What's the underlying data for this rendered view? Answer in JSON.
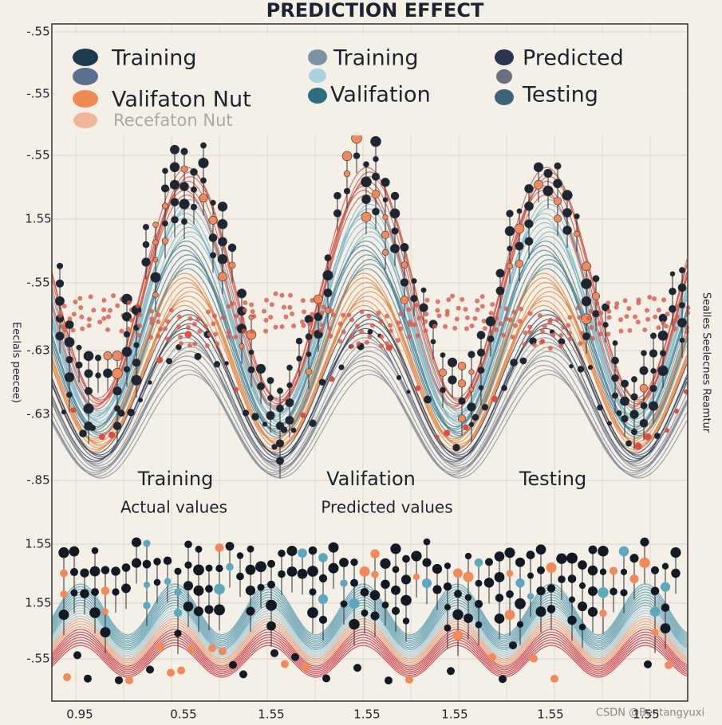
{
  "header": {
    "title": "PREDICTION EFFECT"
  },
  "legend": {
    "items": [
      {
        "label": "Training"
      },
      {
        "label": "Training"
      },
      {
        "label": "Predicted"
      },
      {
        "label": "Valifaton Nut"
      },
      {
        "label": "Valifation"
      },
      {
        "label": "Testing"
      },
      {
        "label": "Recefaton Nut"
      }
    ]
  },
  "axes": {
    "left_label": "Eeclals peecee)",
    "right_label": "Sealles Seelecnes Reamtur",
    "y_labels": [
      "-.55",
      "-.55",
      "-.55",
      "1.55",
      "-.55",
      "-.63",
      "-.63",
      "-.85",
      "1.55",
      "1.55",
      "-.55"
    ],
    "x_labels": [
      "0.95",
      "0.55",
      "1.55",
      "1.55",
      "1.55",
      "1.55",
      "1.55"
    ]
  },
  "panel_labels": {
    "training": "Training",
    "actual": "Actual values",
    "validation": "Valifation",
    "predicted": "Predicted values",
    "testing": "Testing"
  },
  "watermark": "CSDN @Bentangyuxi"
}
